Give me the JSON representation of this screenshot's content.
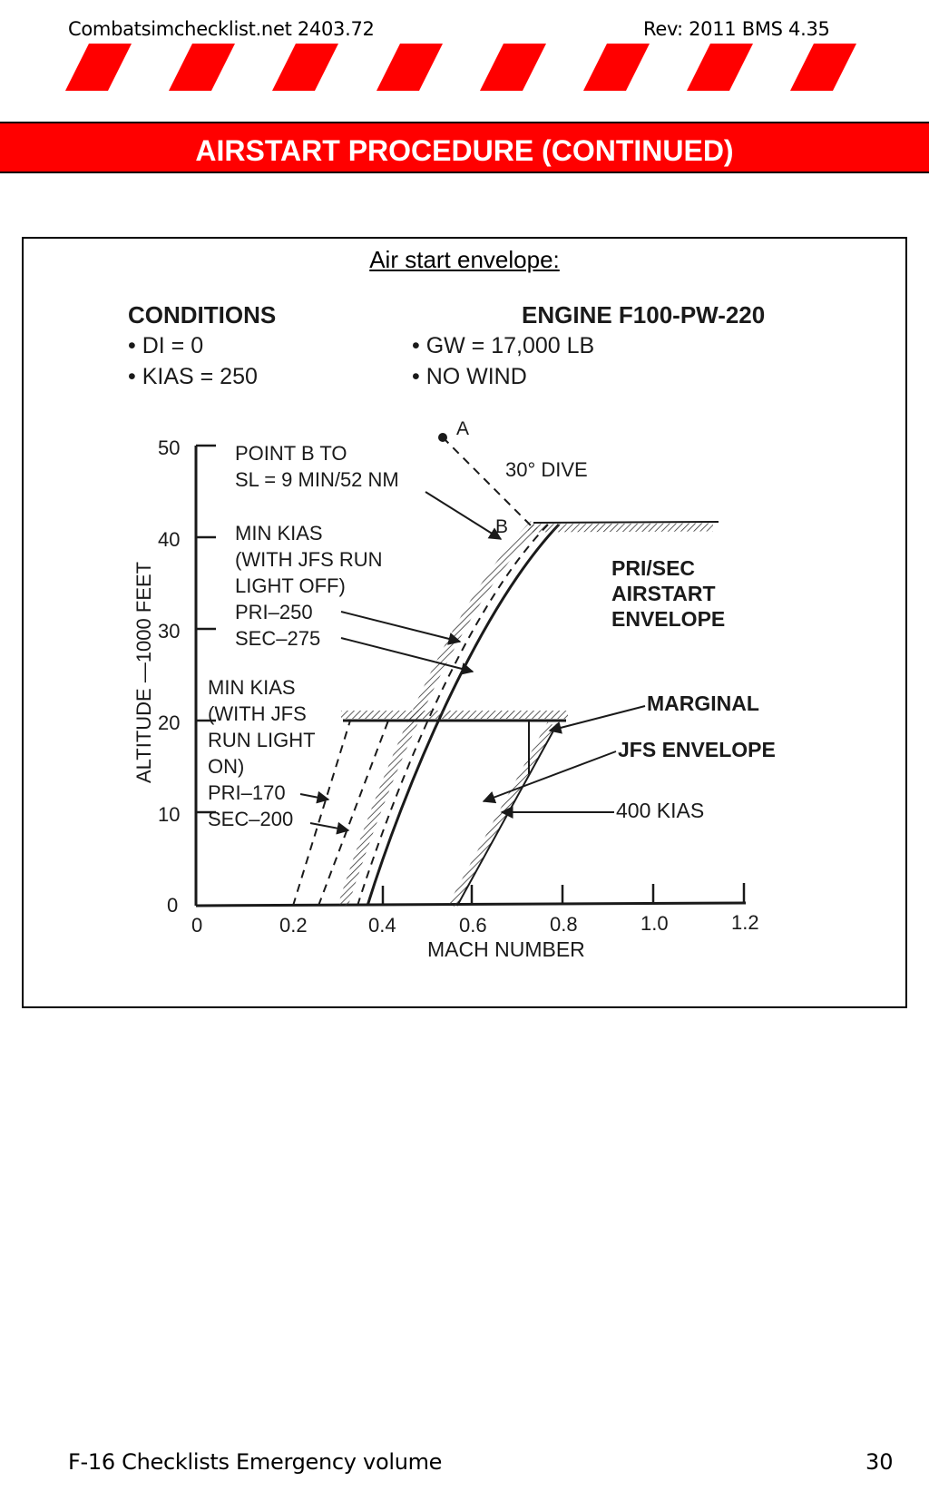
{
  "header": {
    "left": "Combatsimchecklist.net 2403.72",
    "right": "Rev: 2011 BMS 4.35"
  },
  "banner": {
    "title": "AIRSTART PROCEDURE (CONTINUED)"
  },
  "figure": {
    "caption": "Air start envelope:",
    "conditions_title": "CONDITIONS",
    "conditions": [
      "• DI = 0",
      "• KIAS = 250"
    ],
    "engine_title": "ENGINE F100-PW-220",
    "engine_conditions": [
      "• GW = 17,000 LB",
      "• NO WIND"
    ],
    "point_a": "A",
    "point_b": "B",
    "dive_label": "30° DIVE",
    "point_b_note": [
      "POINT B TO",
      "SL = 9 MIN/52 NM"
    ],
    "min_kias_off": [
      "MIN KIAS",
      "(WITH JFS RUN",
      "LIGHT OFF)",
      "PRI–250",
      "SEC–275"
    ],
    "min_kias_on": [
      "MIN KIAS",
      "(WITH JFS",
      "RUN LIGHT",
      "ON)",
      "PRI–170",
      "SEC–200"
    ],
    "envelope_label": [
      "PRI/SEC",
      "AIRSTART",
      "ENVELOPE"
    ],
    "marginal_label": "MARGINAL",
    "jfs_envelope_label": "JFS ENVELOPE",
    "kias_400_label": "400 KIAS",
    "y_axis_label": "ALTITUDE —1000 FEET",
    "x_axis_label": "MACH NUMBER",
    "y_ticks": [
      "0",
      "10",
      "20",
      "30",
      "40",
      "50"
    ],
    "x_ticks": [
      "0",
      "0.2",
      "0.4",
      "0.6",
      "0.8",
      "1.0",
      "1.2"
    ]
  },
  "footer": {
    "left": "F-16 Checklists Emergency volume",
    "right": "30"
  },
  "colors": {
    "banner": "#ff0000",
    "stripe": "#ff0000"
  }
}
